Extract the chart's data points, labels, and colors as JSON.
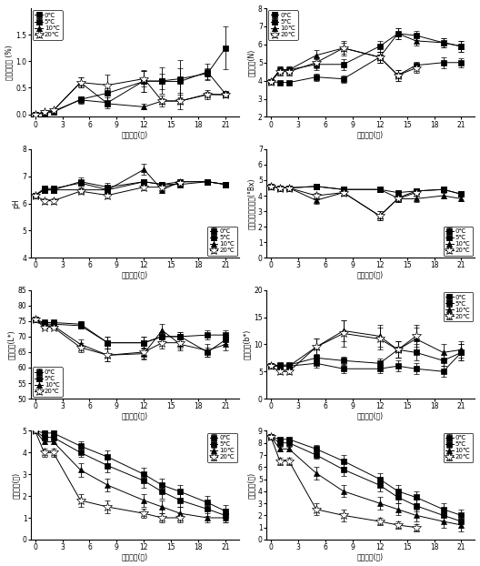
{
  "x": [
    0,
    1,
    2,
    5,
    8,
    12,
    14,
    16,
    19,
    21
  ],
  "plots": [
    {
      "ylabel": "저장감소율 (%)",
      "xlabel": "저장기간(월)",
      "ylim": [
        -0.05,
        2.0
      ],
      "yticks": [
        0.0,
        0.5,
        1.0,
        1.5
      ],
      "xticks": [
        0,
        3,
        6,
        9,
        12,
        15,
        18,
        21
      ],
      "legend_loc": "upper left",
      "series": [
        {
          "label": "0℃",
          "y": [
            0.0,
            0.02,
            0.04,
            0.28,
            0.4,
            0.62,
            0.63,
            0.67,
            0.77,
            1.25
          ],
          "yerr": [
            0.0,
            0.01,
            0.01,
            0.05,
            0.15,
            0.2,
            0.25,
            0.35,
            0.1,
            0.4
          ]
        },
        {
          "label": "5℃",
          "y": [
            0.0,
            0.03,
            0.06,
            0.27,
            0.22,
            0.63,
            0.62,
            0.62,
            0.8,
            0.38
          ],
          "yerr": [
            0.0,
            0.01,
            0.02,
            0.07,
            0.1,
            0.2,
            0.15,
            0.25,
            0.15,
            0.05
          ]
        },
        {
          "label": "10℃",
          "y": [
            0.0,
            0.04,
            0.07,
            0.6,
            0.2,
            0.14,
            0.25,
            0.25,
            0.38,
            0.37
          ],
          "yerr": [
            0.0,
            0.01,
            0.02,
            0.1,
            0.05,
            0.05,
            0.05,
            0.05,
            0.05,
            0.05
          ]
        },
        {
          "label": "20℃",
          "y": [
            0.0,
            0.04,
            0.07,
            0.6,
            0.55,
            0.67,
            0.25,
            0.25,
            0.37,
            0.37
          ],
          "yerr": [
            0.0,
            0.01,
            0.02,
            0.1,
            0.2,
            0.15,
            0.1,
            0.15,
            0.08,
            0.05
          ]
        }
      ]
    },
    {
      "ylabel": "줄기경도(N)",
      "xlabel": "저장기간(월)",
      "ylim": [
        2,
        8
      ],
      "yticks": [
        2,
        3,
        4,
        5,
        6,
        7,
        8
      ],
      "xticks": [
        0,
        3,
        6,
        9,
        12,
        15,
        18,
        21
      ],
      "legend_loc": "upper left",
      "series": [
        {
          "label": "0℃",
          "y": [
            3.95,
            3.9,
            3.9,
            4.2,
            4.1,
            5.3,
            4.3,
            4.85,
            5.0,
            5.0
          ],
          "yerr": [
            0.1,
            0.1,
            0.1,
            0.2,
            0.2,
            0.3,
            0.3,
            0.2,
            0.3,
            0.25
          ]
        },
        {
          "label": "5℃",
          "y": [
            3.95,
            4.6,
            4.6,
            4.9,
            4.9,
            5.9,
            6.6,
            6.5,
            6.1,
            5.9
          ],
          "yerr": [
            0.1,
            0.2,
            0.2,
            0.3,
            0.3,
            0.3,
            0.3,
            0.25,
            0.25,
            0.3
          ]
        },
        {
          "label": "10℃",
          "y": [
            3.95,
            4.6,
            4.6,
            5.4,
            5.8,
            5.3,
            6.6,
            6.2,
            6.1,
            5.9
          ],
          "yerr": [
            0.1,
            0.2,
            0.2,
            0.3,
            0.3,
            0.3,
            0.3,
            0.25,
            0.25,
            0.3
          ]
        },
        {
          "label": "20℃",
          "y": [
            3.95,
            4.5,
            4.5,
            5.0,
            5.8,
            5.3,
            4.3,
            4.7,
            null,
            null
          ],
          "yerr": [
            0.1,
            0.2,
            0.2,
            0.3,
            0.4,
            0.3,
            0.3,
            0.25,
            0.0,
            0.0
          ]
        }
      ]
    },
    {
      "ylabel": "pH",
      "xlabel": "저장기간(월)",
      "ylim": [
        4,
        8
      ],
      "yticks": [
        4,
        5,
        6,
        7,
        8
      ],
      "xticks": [
        0,
        3,
        6,
        9,
        12,
        15,
        18,
        21
      ],
      "legend_loc": "lower right",
      "series": [
        {
          "label": "0℃",
          "y": [
            6.3,
            6.5,
            6.5,
            6.8,
            6.6,
            6.8,
            6.7,
            6.8,
            6.8,
            6.7
          ],
          "yerr": [
            0.05,
            0.1,
            0.1,
            0.15,
            0.15,
            0.1,
            0.1,
            0.1,
            0.1,
            0.1
          ]
        },
        {
          "label": "5℃",
          "y": [
            6.3,
            6.55,
            6.55,
            6.75,
            6.5,
            6.8,
            6.7,
            6.7,
            6.8,
            6.7
          ],
          "yerr": [
            0.05,
            0.1,
            0.1,
            0.1,
            0.15,
            0.1,
            0.1,
            0.1,
            0.1,
            0.1
          ]
        },
        {
          "label": "10℃",
          "y": [
            6.3,
            6.5,
            6.5,
            6.5,
            6.5,
            7.25,
            6.5,
            6.8,
            6.8,
            6.7
          ],
          "yerr": [
            0.05,
            0.1,
            0.1,
            0.1,
            0.1,
            0.2,
            0.1,
            0.1,
            0.1,
            0.1
          ]
        },
        {
          "label": "20℃",
          "y": [
            6.3,
            6.1,
            6.1,
            6.45,
            6.3,
            6.6,
            6.6,
            6.75,
            null,
            null
          ],
          "yerr": [
            0.05,
            0.1,
            0.1,
            0.1,
            0.1,
            0.1,
            0.1,
            0.1,
            0.0,
            0.0
          ]
        }
      ]
    },
    {
      "ylabel": "가용성고형물함량(°Bx)",
      "xlabel": "저장기간(월)",
      "ylim": [
        0,
        7
      ],
      "yticks": [
        0,
        1,
        2,
        3,
        4,
        5,
        6,
        7
      ],
      "xticks": [
        0,
        3,
        6,
        9,
        12,
        15,
        18,
        21
      ],
      "legend_loc": "lower right",
      "series": [
        {
          "label": "0℃",
          "y": [
            4.6,
            4.5,
            4.5,
            4.6,
            4.4,
            4.4,
            3.85,
            4.3,
            4.4,
            4.1
          ],
          "yerr": [
            0.1,
            0.1,
            0.1,
            0.1,
            0.2,
            0.15,
            0.15,
            0.15,
            0.15,
            0.15
          ]
        },
        {
          "label": "5℃",
          "y": [
            4.6,
            4.5,
            4.5,
            4.6,
            4.4,
            4.4,
            4.2,
            4.3,
            4.4,
            4.1
          ],
          "yerr": [
            0.1,
            0.1,
            0.1,
            0.1,
            0.2,
            0.15,
            0.15,
            0.15,
            0.15,
            0.15
          ]
        },
        {
          "label": "10℃",
          "y": [
            4.6,
            4.5,
            4.5,
            3.7,
            4.2,
            2.7,
            3.8,
            3.8,
            4.0,
            3.8
          ],
          "yerr": [
            0.1,
            0.1,
            0.1,
            0.2,
            0.2,
            0.3,
            0.2,
            0.2,
            0.15,
            0.15
          ]
        },
        {
          "label": "20℃",
          "y": [
            4.6,
            4.5,
            4.5,
            4.0,
            4.2,
            2.7,
            3.8,
            4.2,
            null,
            null
          ],
          "yerr": [
            0.1,
            0.1,
            0.1,
            0.2,
            0.2,
            0.3,
            0.2,
            0.2,
            0.0,
            0.0
          ]
        }
      ]
    },
    {
      "ylabel": "줄기색도(L*)",
      "xlabel": "저장기간(월)",
      "ylim": [
        50,
        85
      ],
      "yticks": [
        50,
        55,
        60,
        65,
        70,
        75,
        80,
        85
      ],
      "xticks": [
        0,
        3,
        6,
        9,
        12,
        15,
        18,
        21
      ],
      "legend_loc": "lower left",
      "series": [
        {
          "label": "0℃",
          "y": [
            75.5,
            74.5,
            74.5,
            74.0,
            68.0,
            68.0,
            70.0,
            70.0,
            70.5,
            70.5
          ],
          "yerr": [
            0.5,
            0.5,
            0.5,
            1.0,
            2.0,
            2.0,
            1.5,
            1.5,
            1.5,
            1.5
          ]
        },
        {
          "label": "5℃",
          "y": [
            75.5,
            74.0,
            74.0,
            73.5,
            68.0,
            68.0,
            70.0,
            70.0,
            65.0,
            69.0
          ],
          "yerr": [
            0.5,
            0.5,
            0.5,
            1.0,
            2.0,
            2.0,
            1.5,
            1.5,
            1.5,
            1.5
          ]
        },
        {
          "label": "10℃",
          "y": [
            75.5,
            73.5,
            73.5,
            67.5,
            64.0,
            64.5,
            72.0,
            67.5,
            65.5,
            67.5
          ],
          "yerr": [
            0.5,
            0.5,
            0.5,
            1.5,
            2.0,
            2.0,
            2.0,
            2.0,
            2.0,
            2.0
          ]
        },
        {
          "label": "20℃",
          "y": [
            75.5,
            73.0,
            73.0,
            66.5,
            64.0,
            65.0,
            68.0,
            68.0,
            null,
            null
          ],
          "yerr": [
            0.5,
            0.5,
            0.5,
            1.5,
            2.0,
            2.0,
            2.0,
            2.0,
            0.0,
            0.0
          ]
        }
      ]
    },
    {
      "ylabel": "줄기색도(b*)",
      "xlabel": "저장기간(월)",
      "ylim": [
        0,
        20
      ],
      "yticks": [
        0,
        5,
        10,
        15,
        20
      ],
      "xticks": [
        0,
        3,
        6,
        9,
        12,
        15,
        18,
        21
      ],
      "legend_loc": "upper right",
      "series": [
        {
          "label": "0℃",
          "y": [
            6.0,
            6.0,
            6.0,
            6.5,
            5.5,
            5.5,
            6.0,
            5.5,
            5.0,
            8.5
          ],
          "yerr": [
            0.3,
            0.4,
            0.4,
            0.8,
            0.8,
            0.8,
            1.0,
            1.0,
            1.0,
            1.5
          ]
        },
        {
          "label": "5℃",
          "y": [
            6.0,
            6.2,
            6.2,
            7.5,
            7.0,
            6.5,
            9.0,
            8.5,
            7.0,
            8.5
          ],
          "yerr": [
            0.3,
            0.4,
            0.4,
            0.8,
            0.8,
            0.8,
            1.5,
            1.5,
            1.0,
            1.5
          ]
        },
        {
          "label": "10℃",
          "y": [
            6.0,
            6.0,
            6.0,
            9.5,
            12.5,
            11.5,
            9.0,
            11.0,
            8.5,
            9.0
          ],
          "yerr": [
            0.3,
            0.4,
            0.4,
            1.5,
            2.0,
            2.0,
            1.5,
            2.0,
            1.5,
            1.5
          ]
        },
        {
          "label": "20℃",
          "y": [
            6.0,
            5.0,
            5.0,
            9.5,
            12.0,
            11.0,
            9.0,
            11.5,
            null,
            null
          ],
          "yerr": [
            0.3,
            0.4,
            0.4,
            1.5,
            2.5,
            2.0,
            1.5,
            2.0,
            0.0,
            0.0
          ]
        }
      ]
    },
    {
      "ylabel": "외관변화(점)",
      "xlabel": "저장기간(월)",
      "ylim": [
        0,
        5
      ],
      "yticks": [
        0,
        1,
        2,
        3,
        4,
        5
      ],
      "xticks": [
        0,
        3,
        6,
        9,
        12,
        15,
        18,
        21
      ],
      "legend_loc": "upper right",
      "series": [
        {
          "label": "0℃",
          "y": [
            5.0,
            4.9,
            4.9,
            4.3,
            3.8,
            3.0,
            2.5,
            2.2,
            1.7,
            1.3
          ],
          "yerr": [
            0.1,
            0.1,
            0.1,
            0.2,
            0.3,
            0.3,
            0.3,
            0.3,
            0.3,
            0.3
          ]
        },
        {
          "label": "5℃",
          "y": [
            5.0,
            4.7,
            4.7,
            4.0,
            3.4,
            2.7,
            2.2,
            1.8,
            1.4,
            1.1
          ],
          "yerr": [
            0.1,
            0.1,
            0.1,
            0.2,
            0.3,
            0.3,
            0.3,
            0.3,
            0.3,
            0.3
          ]
        },
        {
          "label": "10℃",
          "y": [
            5.0,
            4.5,
            4.5,
            3.2,
            2.5,
            1.8,
            1.5,
            1.2,
            1.0,
            1.0
          ],
          "yerr": [
            0.1,
            0.1,
            0.1,
            0.3,
            0.3,
            0.3,
            0.3,
            0.3,
            0.2,
            0.2
          ]
        },
        {
          "label": "20℃",
          "y": [
            5.0,
            4.0,
            4.0,
            1.8,
            1.5,
            1.2,
            1.0,
            1.0,
            null,
            null
          ],
          "yerr": [
            0.1,
            0.2,
            0.2,
            0.3,
            0.3,
            0.2,
            0.2,
            0.2,
            0.0,
            0.0
          ]
        }
      ]
    },
    {
      "ylabel": "종합선도(점)",
      "xlabel": "저장기간(월)",
      "ylim": [
        0,
        9
      ],
      "yticks": [
        0,
        1,
        2,
        3,
        4,
        5,
        6,
        7,
        8,
        9
      ],
      "xticks": [
        0,
        3,
        6,
        9,
        12,
        15,
        18,
        21
      ],
      "legend_loc": "upper right",
      "series": [
        {
          "label": "0℃",
          "y": [
            8.5,
            8.3,
            8.3,
            7.5,
            6.5,
            5.0,
            4.0,
            3.5,
            2.5,
            2.0
          ],
          "yerr": [
            0.05,
            0.1,
            0.1,
            0.3,
            0.5,
            0.5,
            0.5,
            0.5,
            0.5,
            0.5
          ]
        },
        {
          "label": "5℃",
          "y": [
            8.5,
            8.0,
            8.0,
            7.0,
            5.8,
            4.5,
            3.5,
            2.8,
            2.0,
            1.5
          ],
          "yerr": [
            0.05,
            0.1,
            0.1,
            0.3,
            0.5,
            0.5,
            0.5,
            0.5,
            0.5,
            0.5
          ]
        },
        {
          "label": "10℃",
          "y": [
            8.5,
            7.5,
            7.5,
            5.5,
            4.0,
            3.0,
            2.5,
            2.0,
            1.5,
            1.2
          ],
          "yerr": [
            0.05,
            0.2,
            0.2,
            0.5,
            0.5,
            0.5,
            0.5,
            0.5,
            0.5,
            0.5
          ]
        },
        {
          "label": "20℃",
          "y": [
            8.5,
            6.5,
            6.5,
            2.5,
            2.0,
            1.5,
            1.2,
            1.0,
            null,
            null
          ],
          "yerr": [
            0.05,
            0.3,
            0.3,
            0.5,
            0.5,
            0.3,
            0.3,
            0.3,
            0.0,
            0.0
          ]
        }
      ]
    }
  ],
  "markers": [
    "s",
    "s",
    "^",
    "*"
  ],
  "colors": [
    "black",
    "black",
    "black",
    "black"
  ],
  "fillstyles": [
    "full",
    "full",
    "full",
    "none"
  ],
  "markersizes": [
    4,
    4,
    5,
    7
  ],
  "linewidths": [
    0.8,
    0.8,
    0.8,
    0.8
  ]
}
